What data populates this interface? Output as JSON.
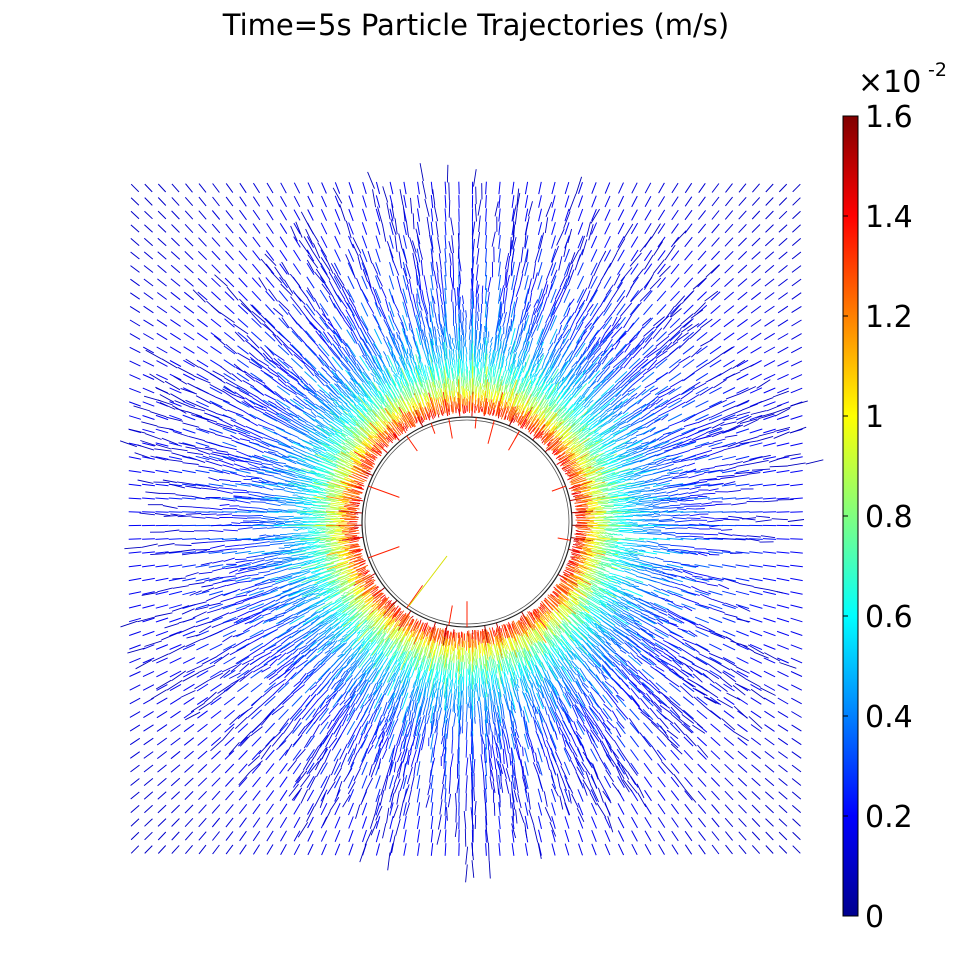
{
  "chart_data": {
    "type": "quiver",
    "title": "Time=5s Particle Trajectories (m/s)",
    "description_field": "radial particle trajectories around a circular obstacle, colored by speed",
    "colorbar": {
      "colormap": "jet",
      "min": 0,
      "max": 1.6,
      "multiplier": "×10",
      "multiplier_exponent": "-2",
      "ticks": [
        0,
        0.2,
        0.4,
        0.6,
        0.8,
        1,
        1.2,
        1.4,
        1.6
      ],
      "tick_labels": [
        "0",
        "0.2",
        "0.4",
        "0.6",
        "0.8",
        "1",
        "1.2",
        "1.4",
        "1.6"
      ]
    },
    "obstacle": {
      "shape": "circle"
    },
    "grid_on": false
  },
  "colors": {
    "jet": [
      "#00008f",
      "#0000ff",
      "#0080ff",
      "#00ffff",
      "#80ff80",
      "#ffff00",
      "#ff8000",
      "#ff0000",
      "#800000"
    ]
  }
}
